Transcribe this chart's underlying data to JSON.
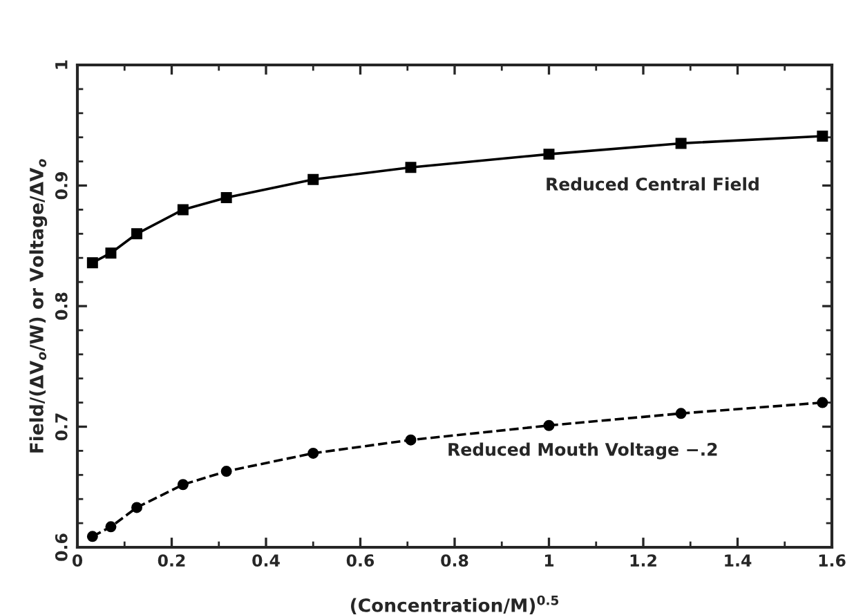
{
  "chart_data": {
    "type": "line",
    "xlabel": "(Concentration/M)$^{0.5}$",
    "ylabel": "Field/(ΔV$_{o}$/W) or Voltage/ΔV$_{o}$",
    "x": [
      0.032,
      0.071,
      0.126,
      0.224,
      0.316,
      0.5,
      0.707,
      1,
      1.28,
      1.58
    ],
    "series": [
      {
        "name": "Reduced Central Field",
        "color": "#000000",
        "marker": "square",
        "line_style": "solid",
        "values": [
          0.836,
          0.844,
          0.86,
          0.88,
          0.89,
          0.905,
          0.915,
          0.926,
          0.935,
          0.941
        ]
      },
      {
        "name": "Reduced Mouth Voltage −.2",
        "color": "#000000",
        "marker": "circle",
        "line_style": "dashed",
        "values": [
          0.609,
          0.617,
          0.633,
          0.652,
          0.663,
          0.678,
          0.689,
          0.701,
          0.711,
          0.72
        ]
      }
    ],
    "xlim": [
      0,
      1.6
    ],
    "xticks": [
      0,
      0.2,
      0.4,
      0.6,
      0.8,
      1,
      1.2,
      1.4,
      1.6
    ],
    "ylim": [
      0.6,
      1
    ],
    "yticks": [
      0.6,
      0.7,
      0.8,
      0.9,
      1
    ],
    "grid": false,
    "legend": false
  }
}
